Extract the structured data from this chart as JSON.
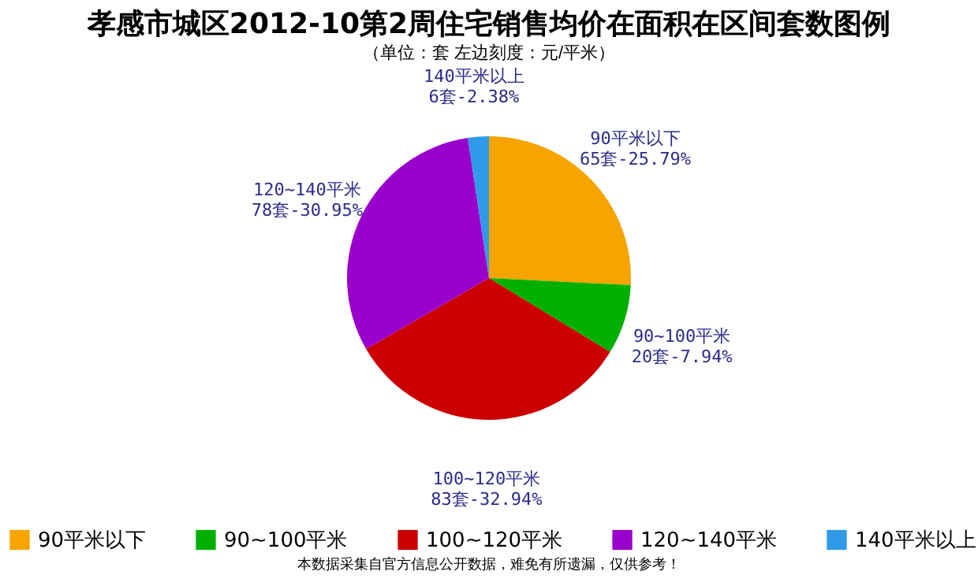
{
  "chart_data": {
    "type": "pie",
    "title": "孝感市城区2012-10第2周住宅销售均价在面积在区间套数图例",
    "subtitle": "（单位：套 左边刻度：元/平米）",
    "categories": [
      "90平米以下",
      "90~100平米",
      "100~120平米",
      "120~140平米",
      "140平米以上"
    ],
    "values": [
      65,
      20,
      83,
      78,
      6
    ],
    "value_labels": [
      "65套-25.79%",
      "20套-7.94%",
      "83套-32.94%",
      "78套-30.95%",
      "6套-2.38%"
    ],
    "colors": [
      "#f5a400",
      "#00b000",
      "#cc0000",
      "#9a00cc",
      "#2f9be8"
    ],
    "legend": "bottom",
    "annotations": [
      "本数据采集自官方信息公开数据，难免有所遗漏，仅供参考！"
    ]
  }
}
